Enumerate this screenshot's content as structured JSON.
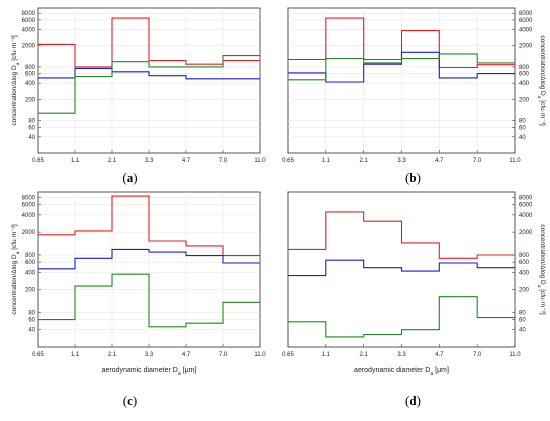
{
  "chart_data": [
    {
      "panel": "(a)",
      "type": "line",
      "step": true,
      "yscale": "log",
      "ylim": [
        20,
        10000
      ],
      "yticks": [
        40,
        60,
        80,
        200,
        400,
        600,
        800,
        2000,
        4000,
        6000,
        8000
      ],
      "xlabel": "",
      "ylabel": "concentration/Δlog D_a [cfu·m⁻³]",
      "y_axis_side": "left",
      "grid": true,
      "x_bins": [
        "0.65",
        "1.1",
        "2.1",
        "3.3",
        "4.7",
        "7.0",
        "11.0"
      ],
      "series": [
        {
          "color": "#e02020",
          "values": [
            2100,
            800,
            6500,
            1050,
            900,
            1050
          ]
        },
        {
          "color": "#1a1ad8",
          "values": [
            500,
            750,
            650,
            550,
            480,
            480
          ]
        },
        {
          "color": "#1d8a1d",
          "values": [
            110,
            530,
            1000,
            800,
            800,
            1300
          ]
        }
      ]
    },
    {
      "panel": "(b)",
      "type": "line",
      "step": true,
      "yscale": "log",
      "ylim": [
        20,
        10000
      ],
      "yticks": [
        40,
        60,
        80,
        200,
        400,
        600,
        800,
        2000,
        4000,
        6000,
        8000
      ],
      "xlabel": "",
      "ylabel": "concentration/Δlog D_a [cfu·m⁻³]",
      "y_axis_side": "right",
      "grid": true,
      "x_bins": [
        "0.65",
        "1.1",
        "2.1",
        "3.3",
        "4.7",
        "7.0",
        "11.0"
      ],
      "series": [
        {
          "color": "#e02020",
          "values": [
            1100,
            6500,
            1100,
            3800,
            780,
            880
          ]
        },
        {
          "color": "#1a1ad8",
          "values": [
            620,
            420,
            900,
            1500,
            500,
            600
          ]
        },
        {
          "color": "#1d8a1d",
          "values": [
            460,
            1150,
            950,
            1150,
            1400,
            950
          ]
        }
      ]
    },
    {
      "panel": "(c)",
      "type": "line",
      "step": true,
      "yscale": "log",
      "ylim": [
        20,
        10000
      ],
      "yticks": [
        40,
        60,
        80,
        200,
        400,
        600,
        800,
        2000,
        4000,
        6000,
        8000
      ],
      "xlabel": "aerodynamic diameter D_a [μm]",
      "ylabel": "concentration/Δlog D_a [cfu·m⁻³]",
      "y_axis_side": "left",
      "grid": true,
      "x_bins": [
        "0.65",
        "1.1",
        "2.1",
        "3.3",
        "4.7",
        "7.0",
        "11.0"
      ],
      "series": [
        {
          "color": "#e02020",
          "values": [
            1800,
            2100,
            8500,
            1400,
            1150,
            780
          ]
        },
        {
          "color": "#1a1ad8",
          "values": [
            460,
            700,
            1000,
            900,
            780,
            580
          ]
        },
        {
          "color": "#1d8a1d",
          "values": [
            60,
            230,
            370,
            45,
            52,
            120
          ]
        }
      ]
    },
    {
      "panel": "(d)",
      "type": "line",
      "step": true,
      "yscale": "log",
      "ylim": [
        20,
        10000
      ],
      "yticks": [
        40,
        60,
        80,
        200,
        400,
        600,
        800,
        2000,
        4000,
        6000,
        8000
      ],
      "xlabel": "aerodynamic diameter D_a [μm]",
      "ylabel": "concentration/Δlog D_a [cfu·m⁻³]",
      "y_axis_side": "right",
      "grid": false,
      "x_bins": [
        "0.65",
        "1.1",
        "2.1",
        "3.3",
        "4.7",
        "7.0",
        "11.0"
      ],
      "series": [
        {
          "color": "#e02020",
          "values": [
            1000,
            4500,
            3100,
            1300,
            700,
            800
          ]
        },
        {
          "color": "#1a1ad8",
          "values": [
            350,
            650,
            480,
            420,
            580,
            480
          ]
        },
        {
          "color": "#1d8a1d",
          "values": [
            55,
            30,
            33,
            40,
            150,
            65
          ]
        }
      ]
    }
  ]
}
